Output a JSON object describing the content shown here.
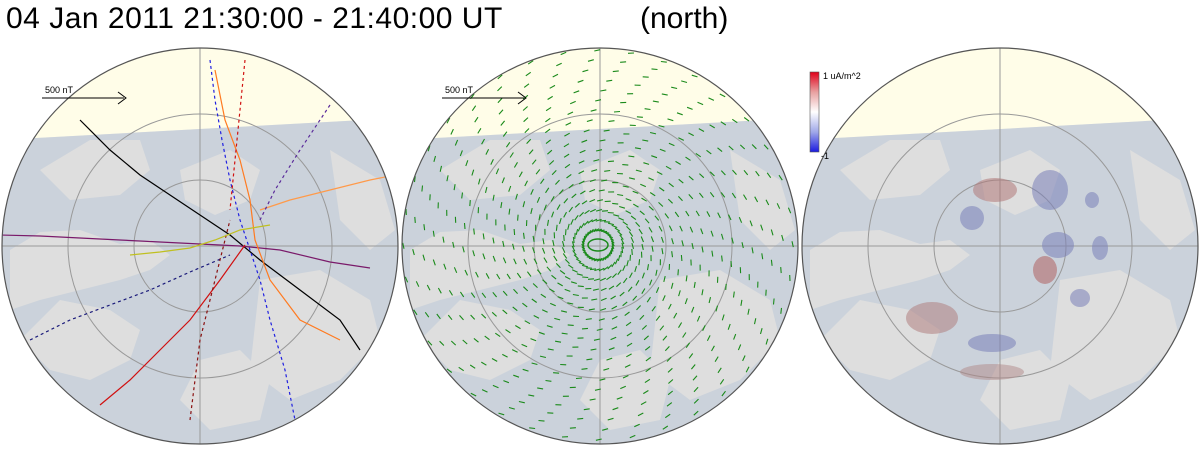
{
  "header": {
    "title": "04  Jan  2011  21:30:00  -   21:40:00  UT",
    "hemisphere": "(north)"
  },
  "panels": [
    {
      "name": "observed-vectors",
      "scale_label": "500 nT"
    },
    {
      "name": "fitted-vectors",
      "scale_label": "500 nT"
    },
    {
      "name": "current-density"
    }
  ],
  "colorbar": {
    "top_label": "1  uA/m^2",
    "bottom_label": "-1",
    "colors": [
      "#e0001a",
      "#e65a5a",
      "#e8a0a0",
      "#f0d0d0",
      "#ffffff",
      "#d0d4f0",
      "#a0a8e8",
      "#5a64e0",
      "#1a1ae0"
    ]
  },
  "colors": {
    "ocean": "#cdd6e1",
    "land": "#dedede",
    "night_shade": "#c9cbd0",
    "day_region": "#fffde8",
    "ice": "#e9f0f8",
    "fitted_vectors": "#1a8a1a"
  }
}
